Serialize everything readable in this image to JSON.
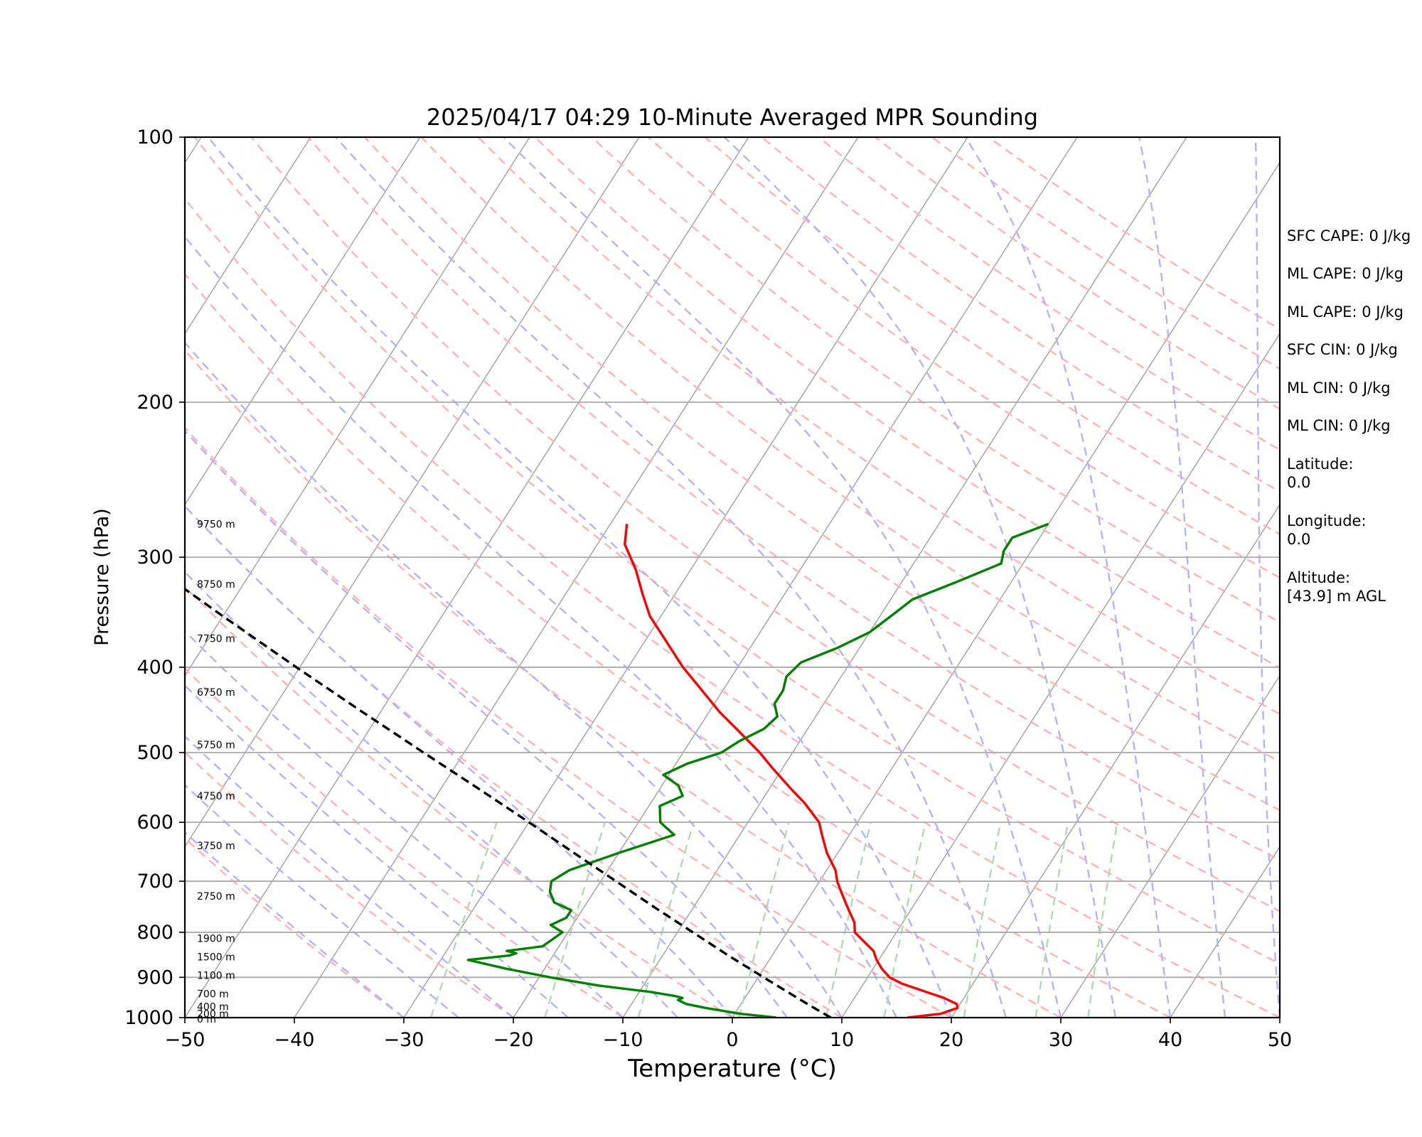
{
  "chart_data": {
    "type": "line",
    "title": "2025/04/17 04:29 10-Minute Averaged MPR Sounding",
    "xlabel": "Temperature (°C)",
    "ylabel": "Pressure (hPa)",
    "xlim": [
      -50,
      50
    ],
    "ylim": [
      1000,
      100
    ],
    "y_scale": "log",
    "grid": true,
    "x_ticks": [
      "−50",
      "−40",
      "−30",
      "−20",
      "−10",
      "0",
      "10",
      "20",
      "30",
      "40",
      "50"
    ],
    "y_ticks": [
      "100",
      "200",
      "300",
      "400",
      "500",
      "600",
      "700",
      "800",
      "900",
      "1000"
    ],
    "colors": {
      "temperature": "#ff0000",
      "dewpoint": "#008000",
      "parcel": "#000000",
      "isotherm": "#aaaaaa",
      "dry_adiabat": "#ffb3b3",
      "moist_adiabat": "#b3b3f5",
      "mixing_ratio": "#b3d9b3"
    },
    "series": [
      {
        "key": "temperature",
        "pressure": [
          1000,
          990,
          975,
          965,
          950,
          935,
          915,
          900,
          880,
          860,
          840,
          820,
          800,
          780,
          750,
          720,
          700,
          680,
          650,
          620,
          600,
          570,
          550,
          520,
          500,
          470,
          450,
          420,
          400,
          370,
          350,
          330,
          310,
          290,
          275
        ],
        "values": [
          16.0,
          18.8,
          20.0,
          19.7,
          18.2,
          16.2,
          13.5,
          12.0,
          10.8,
          9.8,
          9.0,
          7.6,
          6.2,
          5.6,
          4.1,
          2.6,
          1.6,
          0.8,
          -1.0,
          -2.5,
          -3.5,
          -6.0,
          -8.0,
          -11.0,
          -13.0,
          -16.5,
          -19.0,
          -22.5,
          -25.0,
          -28.5,
          -31.0,
          -33.0,
          -35.0,
          -37.5,
          -38.5
        ]
      },
      {
        "key": "dewpoint",
        "pressure": [
          1000,
          990,
          975,
          965,
          955,
          950,
          945,
          935,
          920,
          900,
          880,
          860,
          850,
          845,
          840,
          830,
          815,
          800,
          785,
          770,
          755,
          740,
          720,
          700,
          680,
          650,
          620,
          600,
          575,
          560,
          545,
          530,
          515,
          500,
          485,
          470,
          455,
          440,
          425,
          410,
          395,
          380,
          365,
          350,
          335,
          320,
          305,
          295,
          285,
          275
        ],
        "values": [
          4.0,
          0.5,
          -3.0,
          -5.0,
          -6.0,
          -5.7,
          -6.5,
          -9.0,
          -14.0,
          -19.0,
          -23.5,
          -27.5,
          -24.0,
          -23.5,
          -24.5,
          -21.5,
          -21.0,
          -20.5,
          -22.0,
          -21.0,
          -21.0,
          -23.0,
          -24.0,
          -24.5,
          -23.5,
          -20.0,
          -16.0,
          -18.0,
          -19.0,
          -17.5,
          -18.5,
          -20.5,
          -19.0,
          -16.5,
          -15.5,
          -14.0,
          -13.5,
          -14.5,
          -14.5,
          -15.0,
          -14.5,
          -12.0,
          -10.0,
          -9.0,
          -8.0,
          -5.0,
          -2.0,
          -2.5,
          -2.5,
          0.0
        ]
      },
      {
        "key": "parcel",
        "pressure": [
          1000,
          975,
          950,
          900,
          850,
          800,
          750,
          700,
          650,
          600,
          550,
          500,
          450,
          400,
          350,
          300,
          275
        ],
        "values": [
          9.0,
          6.9,
          4.8,
          0.5,
          -4.0,
          -8.6,
          -13.5,
          -18.6,
          -24.1,
          -30.0,
          -36.5,
          -43.7,
          -51.6,
          -60.3,
          -70.0,
          -81.0,
          -87.0
        ]
      }
    ],
    "height_labels": [
      {
        "text": "9750 m",
        "pressure": 275
      },
      {
        "text": "8750 m",
        "pressure": 322
      },
      {
        "text": "7750 m",
        "pressure": 371
      },
      {
        "text": "6750 m",
        "pressure": 427
      },
      {
        "text": "5750 m",
        "pressure": 490
      },
      {
        "text": "4750 m",
        "pressure": 560
      },
      {
        "text": "3750 m",
        "pressure": 638
      },
      {
        "text": "2750 m",
        "pressure": 728
      },
      {
        "text": "1900 m",
        "pressure": 813
      },
      {
        "text": "1500 m",
        "pressure": 853
      },
      {
        "text": "1100 m",
        "pressure": 895
      },
      {
        "text": "700 m",
        "pressure": 940
      },
      {
        "text": "400 m",
        "pressure": 972
      },
      {
        "text": "200 m",
        "pressure": 990
      },
      {
        "text": "0 m",
        "pressure": 1004
      }
    ]
  },
  "info": {
    "sfc_cape": "SFC CAPE: 0 J/kg",
    "ml_cape_1": "ML CAPE: 0 J/kg",
    "ml_cape_2": "ML CAPE: 0 J/kg",
    "sfc_cin": "SFC CIN: 0 J/kg",
    "ml_cin_1": "ML CIN: 0 J/kg",
    "ml_cin_2": "ML CIN: 0 J/kg",
    "latitude_label": "Latitude:",
    "latitude_value": "0.0",
    "longitude_label": "Longitude:",
    "longitude_value": "0.0",
    "altitude_label": "Altitude:",
    "altitude_value": "[43.9] m AGL"
  }
}
